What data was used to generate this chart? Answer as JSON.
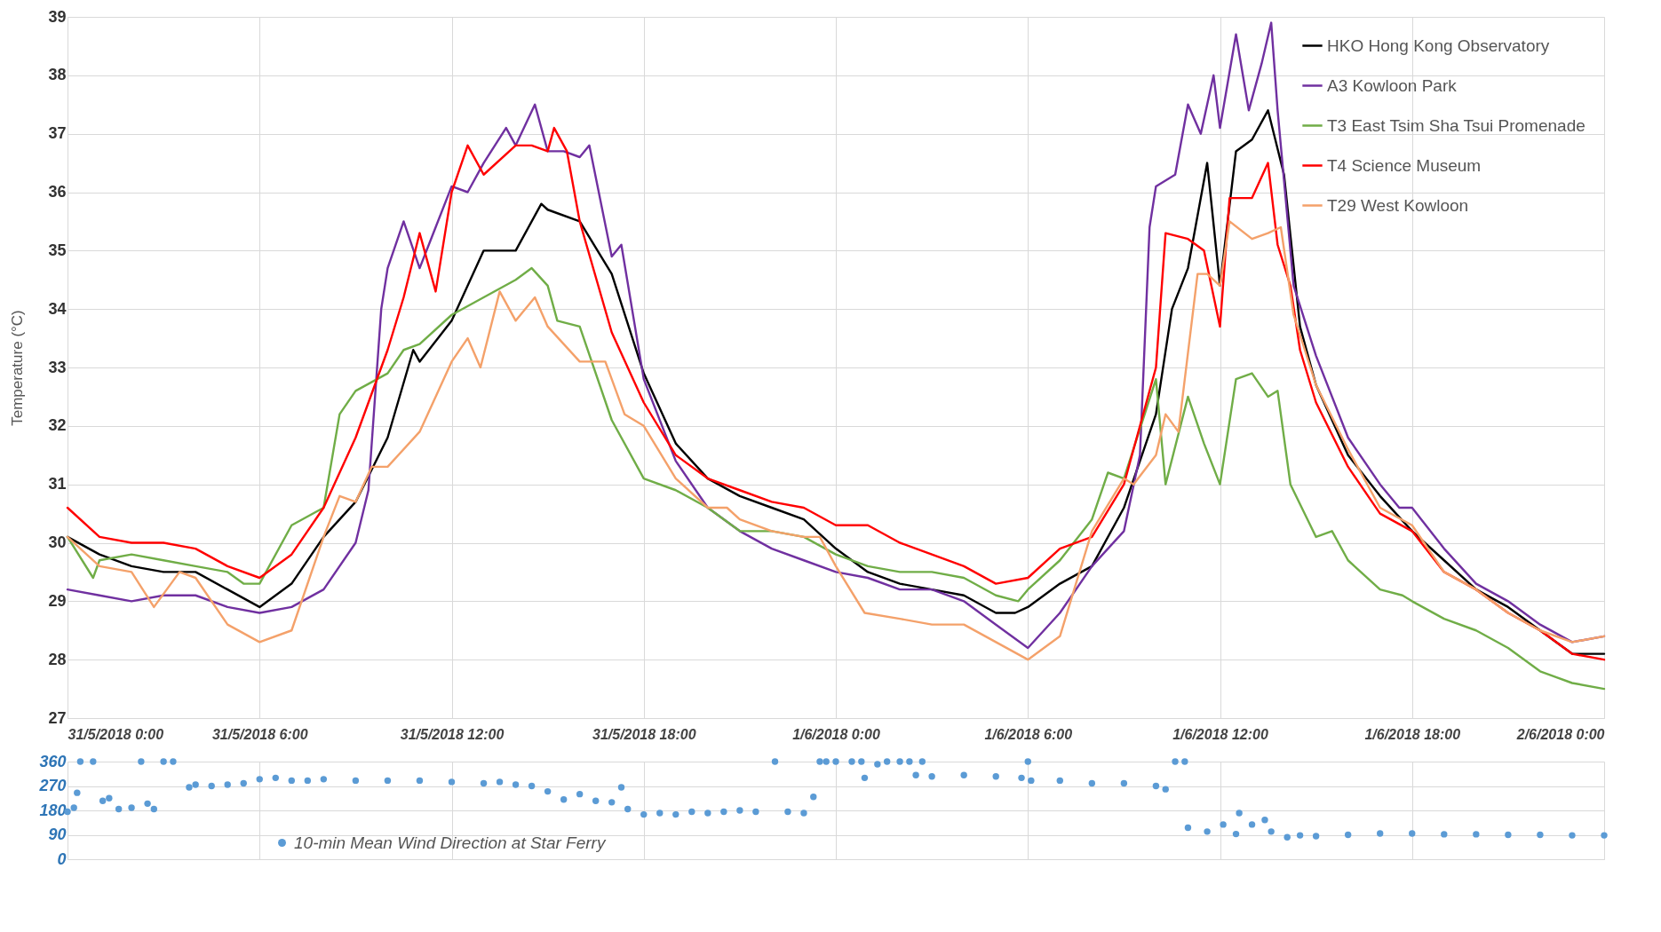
{
  "chart_data": [
    {
      "type": "line",
      "ylabel": "Temperature (°C)",
      "xlim": [
        "2018-05-31T00:00",
        "2018-06-02T00:00"
      ],
      "xticks": [
        {
          "value": "2018-05-31T00:00",
          "label": "31/5/2018 0:00"
        },
        {
          "value": "2018-05-31T06:00",
          "label": "31/5/2018 6:00"
        },
        {
          "value": "2018-05-31T12:00",
          "label": "31/5/2018 12:00"
        },
        {
          "value": "2018-05-31T18:00",
          "label": "31/5/2018 18:00"
        },
        {
          "value": "2018-06-01T00:00",
          "label": "1/6/2018 0:00"
        },
        {
          "value": "2018-06-01T06:00",
          "label": "1/6/2018 6:00"
        },
        {
          "value": "2018-06-01T12:00",
          "label": "1/6/2018 12:00"
        },
        {
          "value": "2018-06-01T18:00",
          "label": "1/6/2018 18:00"
        },
        {
          "value": "2018-06-02T00:00",
          "label": "2/6/2018 0:00"
        }
      ],
      "ylim": [
        27,
        39
      ],
      "yticks": [
        27,
        28,
        29,
        30,
        31,
        32,
        33,
        34,
        35,
        36,
        37,
        38,
        39
      ],
      "grid": true,
      "legend": "top right",
      "series": [
        {
          "name": "HKO Hong Kong Observatory",
          "color": "#000000",
          "x": [
            "2018-05-31T00:00",
            "2018-05-31T01:00",
            "2018-05-31T02:00",
            "2018-05-31T03:00",
            "2018-05-31T04:00",
            "2018-05-31T05:00",
            "2018-05-31T06:00",
            "2018-05-31T07:00",
            "2018-05-31T08:00",
            "2018-05-31T09:00",
            "2018-05-31T10:00",
            "2018-05-31T10:48",
            "2018-05-31T11:00",
            "2018-05-31T12:00",
            "2018-05-31T13:00",
            "2018-05-31T14:00",
            "2018-05-31T14:48",
            "2018-05-31T15:00",
            "2018-05-31T16:00",
            "2018-05-31T17:00",
            "2018-05-31T18:00",
            "2018-05-31T19:00",
            "2018-05-31T20:00",
            "2018-05-31T21:00",
            "2018-05-31T22:00",
            "2018-05-31T23:00",
            "2018-06-01T00:00",
            "2018-06-01T01:00",
            "2018-06-01T02:00",
            "2018-06-01T03:00",
            "2018-06-01T04:00",
            "2018-06-01T05:00",
            "2018-06-01T05:36",
            "2018-06-01T06:00",
            "2018-06-01T07:00",
            "2018-06-01T08:00",
            "2018-06-01T09:00",
            "2018-06-01T10:00",
            "2018-06-01T10:30",
            "2018-06-01T11:00",
            "2018-06-01T11:36",
            "2018-06-01T12:00",
            "2018-06-01T12:30",
            "2018-06-01T13:00",
            "2018-06-01T13:30",
            "2018-06-01T14:00",
            "2018-06-01T14:30",
            "2018-06-01T15:00",
            "2018-06-01T16:00",
            "2018-06-01T17:00",
            "2018-06-01T18:00",
            "2018-06-01T19:00",
            "2018-06-01T20:00",
            "2018-06-01T21:00",
            "2018-06-01T22:00",
            "2018-06-01T23:00",
            "2018-06-02T00:00"
          ],
          "values": [
            30.1,
            29.8,
            29.6,
            29.5,
            29.5,
            29.2,
            28.9,
            29.3,
            30.1,
            30.7,
            31.8,
            33.3,
            33.1,
            33.8,
            35.0,
            35.0,
            35.8,
            35.7,
            35.5,
            34.6,
            32.9,
            31.7,
            31.1,
            30.8,
            30.6,
            30.4,
            29.9,
            29.5,
            29.3,
            29.2,
            29.1,
            28.8,
            28.8,
            28.9,
            29.3,
            29.6,
            30.6,
            32.2,
            34.0,
            34.7,
            36.5,
            34.4,
            36.7,
            36.9,
            37.4,
            36.3,
            33.7,
            32.7,
            31.5,
            30.8,
            30.2,
            29.7,
            29.2,
            28.9,
            28.5,
            28.1,
            28.1
          ]
        },
        {
          "name": "A3  Kowloon Park",
          "color": "#7030a0",
          "x": [
            "2018-05-31T00:00",
            "2018-05-31T01:00",
            "2018-05-31T02:00",
            "2018-05-31T03:00",
            "2018-05-31T04:00",
            "2018-05-31T05:00",
            "2018-05-31T06:00",
            "2018-05-31T07:00",
            "2018-05-31T08:00",
            "2018-05-31T09:00",
            "2018-05-31T09:24",
            "2018-05-31T09:48",
            "2018-05-31T10:00",
            "2018-05-31T10:30",
            "2018-05-31T11:00",
            "2018-05-31T11:30",
            "2018-05-31T12:00",
            "2018-05-31T12:30",
            "2018-05-31T13:00",
            "2018-05-31T13:42",
            "2018-05-31T14:00",
            "2018-05-31T14:36",
            "2018-05-31T15:00",
            "2018-05-31T15:30",
            "2018-05-31T16:00",
            "2018-05-31T16:18",
            "2018-05-31T17:00",
            "2018-05-31T17:18",
            "2018-05-31T18:00",
            "2018-05-31T19:00",
            "2018-05-31T20:00",
            "2018-05-31T21:00",
            "2018-05-31T22:00",
            "2018-05-31T23:00",
            "2018-06-01T00:00",
            "2018-06-01T01:00",
            "2018-06-01T02:00",
            "2018-06-01T03:00",
            "2018-06-01T04:00",
            "2018-06-01T05:00",
            "2018-06-01T06:00",
            "2018-06-01T07:00",
            "2018-06-01T08:00",
            "2018-06-01T09:00",
            "2018-06-01T09:30",
            "2018-06-01T09:48",
            "2018-06-01T10:00",
            "2018-06-01T10:36",
            "2018-06-01T11:00",
            "2018-06-01T11:24",
            "2018-06-01T11:48",
            "2018-06-01T12:00",
            "2018-06-01T12:30",
            "2018-06-01T12:54",
            "2018-06-01T13:18",
            "2018-06-01T13:36",
            "2018-06-01T13:48",
            "2018-06-01T14:18",
            "2018-06-01T15:00",
            "2018-06-01T16:00",
            "2018-06-01T17:00",
            "2018-06-01T17:36",
            "2018-06-01T18:00",
            "2018-06-01T19:00",
            "2018-06-01T20:00",
            "2018-06-01T21:00",
            "2018-06-01T22:00",
            "2018-06-01T23:00",
            "2018-06-02T00:00"
          ],
          "values": [
            29.2,
            29.1,
            29.0,
            29.1,
            29.1,
            28.9,
            28.8,
            28.9,
            29.2,
            30.0,
            30.9,
            34.0,
            34.7,
            35.5,
            34.7,
            35.4,
            36.1,
            36.0,
            36.5,
            37.1,
            36.8,
            37.5,
            36.7,
            36.7,
            36.6,
            36.8,
            34.9,
            35.1,
            32.8,
            31.4,
            30.6,
            30.2,
            29.9,
            29.7,
            29.5,
            29.4,
            29.2,
            29.2,
            29.0,
            28.6,
            28.2,
            28.8,
            29.6,
            30.2,
            31.5,
            35.4,
            36.1,
            36.3,
            37.5,
            37.0,
            38.0,
            37.1,
            38.7,
            37.4,
            38.2,
            38.9,
            37.4,
            34.4,
            33.2,
            31.8,
            31.0,
            30.6,
            30.6,
            29.9,
            29.3,
            29.0,
            28.6,
            28.3,
            28.4
          ]
        },
        {
          "name": "T3 East Tsim Sha Tsui Promenade",
          "color": "#70ad47",
          "x": [
            "2018-05-31T00:00",
            "2018-05-31T00:48",
            "2018-05-31T01:00",
            "2018-05-31T02:00",
            "2018-05-31T03:00",
            "2018-05-31T04:00",
            "2018-05-31T05:00",
            "2018-05-31T05:30",
            "2018-05-31T06:00",
            "2018-05-31T07:00",
            "2018-05-31T08:00",
            "2018-05-31T08:30",
            "2018-05-31T09:00",
            "2018-05-31T10:00",
            "2018-05-31T10:30",
            "2018-05-31T11:00",
            "2018-05-31T12:00",
            "2018-05-31T13:00",
            "2018-05-31T14:00",
            "2018-05-31T14:30",
            "2018-05-31T15:00",
            "2018-05-31T15:18",
            "2018-05-31T16:00",
            "2018-05-31T17:00",
            "2018-05-31T18:00",
            "2018-05-31T19:00",
            "2018-05-31T20:00",
            "2018-05-31T21:00",
            "2018-05-31T22:00",
            "2018-05-31T23:00",
            "2018-06-01T00:00",
            "2018-06-01T01:00",
            "2018-06-01T02:00",
            "2018-06-01T03:00",
            "2018-06-01T04:00",
            "2018-06-01T05:00",
            "2018-06-01T05:42",
            "2018-06-01T06:00",
            "2018-06-01T07:00",
            "2018-06-01T08:00",
            "2018-06-01T08:30",
            "2018-06-01T09:00",
            "2018-06-01T10:00",
            "2018-06-01T10:18",
            "2018-06-01T11:00",
            "2018-06-01T11:30",
            "2018-06-01T12:00",
            "2018-06-01T12:30",
            "2018-06-01T13:00",
            "2018-06-01T13:30",
            "2018-06-01T13:48",
            "2018-06-01T14:12",
            "2018-06-01T15:00",
            "2018-06-01T15:30",
            "2018-06-01T16:00",
            "2018-06-01T17:00",
            "2018-06-01T17:42",
            "2018-06-01T18:00",
            "2018-06-01T19:00",
            "2018-06-01T20:00",
            "2018-06-01T21:00",
            "2018-06-01T22:00",
            "2018-06-01T23:00",
            "2018-06-02T00:00"
          ],
          "values": [
            30.1,
            29.4,
            29.7,
            29.8,
            29.7,
            29.6,
            29.5,
            29.3,
            29.3,
            30.3,
            30.6,
            32.2,
            32.6,
            32.9,
            33.3,
            33.4,
            33.9,
            34.2,
            34.5,
            34.7,
            34.4,
            33.8,
            33.7,
            32.1,
            31.1,
            30.9,
            30.6,
            30.2,
            30.2,
            30.1,
            29.8,
            29.6,
            29.5,
            29.5,
            29.4,
            29.1,
            29.0,
            29.2,
            29.7,
            30.4,
            31.2,
            31.1,
            32.8,
            31.0,
            32.5,
            31.7,
            31.0,
            32.8,
            32.9,
            32.5,
            32.6,
            31.0,
            30.1,
            30.2,
            29.7,
            29.2,
            29.1,
            29.0,
            28.7,
            28.5,
            28.2,
            27.8,
            27.6,
            27.5
          ]
        },
        {
          "name": "T4 Science Museum",
          "color": "#ff0000",
          "x": [
            "2018-05-31T00:00",
            "2018-05-31T01:00",
            "2018-05-31T02:00",
            "2018-05-31T03:00",
            "2018-05-31T04:00",
            "2018-05-31T05:00",
            "2018-05-31T06:00",
            "2018-05-31T07:00",
            "2018-05-31T08:00",
            "2018-05-31T09:00",
            "2018-05-31T10:00",
            "2018-05-31T10:30",
            "2018-05-31T11:00",
            "2018-05-31T11:30",
            "2018-05-31T12:00",
            "2018-05-31T12:30",
            "2018-05-31T13:00",
            "2018-05-31T14:00",
            "2018-05-31T14:30",
            "2018-05-31T15:00",
            "2018-05-31T15:12",
            "2018-05-31T15:36",
            "2018-05-31T16:00",
            "2018-05-31T17:00",
            "2018-05-31T18:00",
            "2018-05-31T19:00",
            "2018-05-31T20:00",
            "2018-05-31T21:00",
            "2018-05-31T22:00",
            "2018-05-31T23:00",
            "2018-06-01T00:00",
            "2018-06-01T01:00",
            "2018-06-01T02:00",
            "2018-06-01T03:00",
            "2018-06-01T04:00",
            "2018-06-01T05:00",
            "2018-06-01T06:00",
            "2018-06-01T07:00",
            "2018-06-01T08:00",
            "2018-06-01T09:00",
            "2018-06-01T10:00",
            "2018-06-01T10:18",
            "2018-06-01T11:00",
            "2018-06-01T11:30",
            "2018-06-01T12:00",
            "2018-06-01T12:18",
            "2018-06-01T13:00",
            "2018-06-01T13:30",
            "2018-06-01T13:48",
            "2018-06-01T14:12",
            "2018-06-01T14:30",
            "2018-06-01T15:00",
            "2018-06-01T16:00",
            "2018-06-01T17:00",
            "2018-06-01T18:00",
            "2018-06-01T19:00",
            "2018-06-01T20:00",
            "2018-06-01T21:00",
            "2018-06-01T22:00",
            "2018-06-01T23:00",
            "2018-06-02T00:00"
          ],
          "values": [
            30.6,
            30.1,
            30.0,
            30.0,
            29.9,
            29.6,
            29.4,
            29.8,
            30.6,
            31.8,
            33.3,
            34.2,
            35.3,
            34.3,
            36.0,
            36.8,
            36.3,
            36.8,
            36.8,
            36.7,
            37.1,
            36.7,
            35.5,
            33.6,
            32.4,
            31.5,
            31.1,
            30.9,
            30.7,
            30.6,
            30.3,
            30.3,
            30.0,
            29.8,
            29.6,
            29.3,
            29.4,
            29.9,
            30.1,
            31.0,
            33.0,
            35.3,
            35.2,
            35.0,
            33.7,
            35.9,
            35.9,
            36.5,
            35.1,
            34.4,
            33.3,
            32.4,
            31.3,
            30.5,
            30.2,
            29.5,
            29.2,
            28.8,
            28.5,
            28.1,
            28.0
          ]
        },
        {
          "name": "T29 West Kowloon",
          "color": "#f4a16a",
          "x": [
            "2018-05-31T00:00",
            "2018-05-31T01:00",
            "2018-05-31T02:00",
            "2018-05-31T02:42",
            "2018-05-31T03:30",
            "2018-05-31T04:00",
            "2018-05-31T05:00",
            "2018-05-31T06:00",
            "2018-05-31T07:00",
            "2018-05-31T08:00",
            "2018-05-31T08:30",
            "2018-05-31T09:00",
            "2018-05-31T09:30",
            "2018-05-31T10:00",
            "2018-05-31T11:00",
            "2018-05-31T12:00",
            "2018-05-31T12:30",
            "2018-05-31T12:54",
            "2018-05-31T13:30",
            "2018-05-31T14:00",
            "2018-05-31T14:36",
            "2018-05-31T15:00",
            "2018-05-31T16:00",
            "2018-05-31T16:48",
            "2018-05-31T17:24",
            "2018-05-31T18:00",
            "2018-05-31T19:00",
            "2018-05-31T20:00",
            "2018-05-31T20:36",
            "2018-05-31T21:00",
            "2018-05-31T22:00",
            "2018-05-31T23:00",
            "2018-05-31T23:30",
            "2018-06-01T00:00",
            "2018-06-01T00:54",
            "2018-06-01T02:00",
            "2018-06-01T03:00",
            "2018-06-01T04:00",
            "2018-06-01T05:00",
            "2018-06-01T06:00",
            "2018-06-01T07:00",
            "2018-06-01T08:00",
            "2018-06-01T09:00",
            "2018-06-01T09:18",
            "2018-06-01T10:00",
            "2018-06-01T10:18",
            "2018-06-01T10:42",
            "2018-06-01T11:18",
            "2018-06-01T11:36",
            "2018-06-01T12:00",
            "2018-06-01T12:18",
            "2018-06-01T13:00",
            "2018-06-01T13:30",
            "2018-06-01T13:54",
            "2018-06-01T14:18",
            "2018-06-01T15:00",
            "2018-06-01T16:00",
            "2018-06-01T17:00",
            "2018-06-01T18:00",
            "2018-06-01T19:00",
            "2018-06-01T20:00",
            "2018-06-01T21:00",
            "2018-06-01T22:00",
            "2018-06-01T23:00",
            "2018-06-02T00:00"
          ],
          "values": [
            30.1,
            29.6,
            29.5,
            28.9,
            29.5,
            29.4,
            28.6,
            28.3,
            28.5,
            30.1,
            30.8,
            30.7,
            31.3,
            31.3,
            31.9,
            33.1,
            33.5,
            33.0,
            34.3,
            33.8,
            34.2,
            33.7,
            33.1,
            33.1,
            32.2,
            32.0,
            31.1,
            30.6,
            30.6,
            30.4,
            30.2,
            30.1,
            30.1,
            29.6,
            28.8,
            28.7,
            28.6,
            28.6,
            28.3,
            28.0,
            28.4,
            30.2,
            31.1,
            31.0,
            31.5,
            32.2,
            31.9,
            34.6,
            34.6,
            34.4,
            35.5,
            35.2,
            35.3,
            35.4,
            33.9,
            32.7,
            31.6,
            30.6,
            30.3,
            29.5,
            29.2,
            28.8,
            28.5,
            28.3,
            28.4
          ]
        }
      ]
    },
    {
      "type": "scatter",
      "xlim": [
        "2018-05-31T00:00",
        "2018-06-02T00:00"
      ],
      "xticks": [
        {
          "value": "2018-05-31T00:00",
          "label": null
        },
        {
          "value": "2018-05-31T06:00",
          "label": null
        },
        {
          "value": "2018-05-31T12:00",
          "label": null
        },
        {
          "value": "2018-05-31T18:00",
          "label": null
        },
        {
          "value": "2018-06-01T00:00",
          "label": null
        },
        {
          "value": "2018-06-01T06:00",
          "label": null
        },
        {
          "value": "2018-06-01T12:00",
          "label": null
        },
        {
          "value": "2018-06-01T18:00",
          "label": null
        },
        {
          "value": "2018-06-02T00:00",
          "label": null
        }
      ],
      "ylim": [
        0,
        360
      ],
      "yticks": [
        0,
        90,
        180,
        270,
        360
      ],
      "tick_labels": "y",
      "grid": true,
      "legend": "bottom left",
      "marker": "circle",
      "series": [
        {
          "name": "10-min Mean Wind Direction at Star Ferry",
          "color": "#5b9bd5",
          "x": [
            "2018-05-31T00:00",
            "2018-05-31T00:12",
            "2018-05-31T00:18",
            "2018-05-31T00:24",
            "2018-05-31T00:48",
            "2018-05-31T01:06",
            "2018-05-31T01:18",
            "2018-05-31T01:36",
            "2018-05-31T02:00",
            "2018-05-31T02:18",
            "2018-05-31T02:30",
            "2018-05-31T02:42",
            "2018-05-31T03:00",
            "2018-05-31T03:18",
            "2018-05-31T03:48",
            "2018-05-31T04:00",
            "2018-05-31T04:30",
            "2018-05-31T05:00",
            "2018-05-31T05:30",
            "2018-05-31T06:00",
            "2018-05-31T06:30",
            "2018-05-31T07:00",
            "2018-05-31T07:30",
            "2018-05-31T08:00",
            "2018-05-31T09:00",
            "2018-05-31T10:00",
            "2018-05-31T11:00",
            "2018-05-31T12:00",
            "2018-05-31T13:00",
            "2018-05-31T13:30",
            "2018-05-31T14:00",
            "2018-05-31T14:30",
            "2018-05-31T15:00",
            "2018-05-31T15:30",
            "2018-05-31T16:00",
            "2018-05-31T16:30",
            "2018-05-31T17:00",
            "2018-05-31T17:18",
            "2018-05-31T17:30",
            "2018-05-31T18:00",
            "2018-05-31T18:30",
            "2018-05-31T19:00",
            "2018-05-31T19:30",
            "2018-05-31T20:00",
            "2018-05-31T20:30",
            "2018-05-31T21:00",
            "2018-05-31T21:30",
            "2018-05-31T22:06",
            "2018-05-31T22:30",
            "2018-05-31T23:00",
            "2018-05-31T23:18",
            "2018-05-31T23:30",
            "2018-05-31T23:42",
            "2018-06-01T00:00",
            "2018-06-01T00:30",
            "2018-06-01T00:48",
            "2018-06-01T00:54",
            "2018-06-01T01:18",
            "2018-06-01T01:36",
            "2018-06-01T02:00",
            "2018-06-01T02:18",
            "2018-06-01T02:30",
            "2018-06-01T02:42",
            "2018-06-01T03:00",
            "2018-06-01T04:00",
            "2018-06-01T05:00",
            "2018-06-01T05:48",
            "2018-06-01T06:00",
            "2018-06-01T06:06",
            "2018-06-01T07:00",
            "2018-06-01T08:00",
            "2018-06-01T09:00",
            "2018-06-01T10:00",
            "2018-06-01T10:18",
            "2018-06-01T10:36",
            "2018-06-01T10:54",
            "2018-06-01T11:00",
            "2018-06-01T11:36",
            "2018-06-01T12:06",
            "2018-06-01T12:30",
            "2018-06-01T12:36",
            "2018-06-01T13:00",
            "2018-06-01T13:24",
            "2018-06-01T13:36",
            "2018-06-01T14:06",
            "2018-06-01T14:30",
            "2018-06-01T15:00",
            "2018-06-01T16:00",
            "2018-06-01T17:00",
            "2018-06-01T18:00",
            "2018-06-01T19:00",
            "2018-06-01T20:00",
            "2018-06-01T21:00",
            "2018-06-01T22:00",
            "2018-06-01T23:00",
            "2018-06-02T00:00"
          ],
          "values": [
            175,
            190,
            245,
            360,
            360,
            215,
            225,
            185,
            190,
            360,
            205,
            185,
            360,
            360,
            265,
            275,
            270,
            275,
            280,
            295,
            300,
            290,
            290,
            295,
            290,
            290,
            290,
            285,
            280,
            285,
            275,
            270,
            250,
            220,
            240,
            215,
            210,
            265,
            185,
            165,
            170,
            165,
            175,
            170,
            175,
            180,
            175,
            360,
            175,
            170,
            230,
            360,
            360,
            360,
            360,
            360,
            300,
            350,
            360,
            360,
            360,
            310,
            360,
            305,
            310,
            305,
            300,
            360,
            290,
            290,
            280,
            280,
            270,
            258,
            360,
            360,
            116,
            102,
            128,
            93,
            170,
            128,
            145,
            102,
            81,
            88,
            85,
            90,
            95,
            95,
            92,
            92,
            90,
            90,
            88,
            88
          ]
        }
      ]
    }
  ]
}
